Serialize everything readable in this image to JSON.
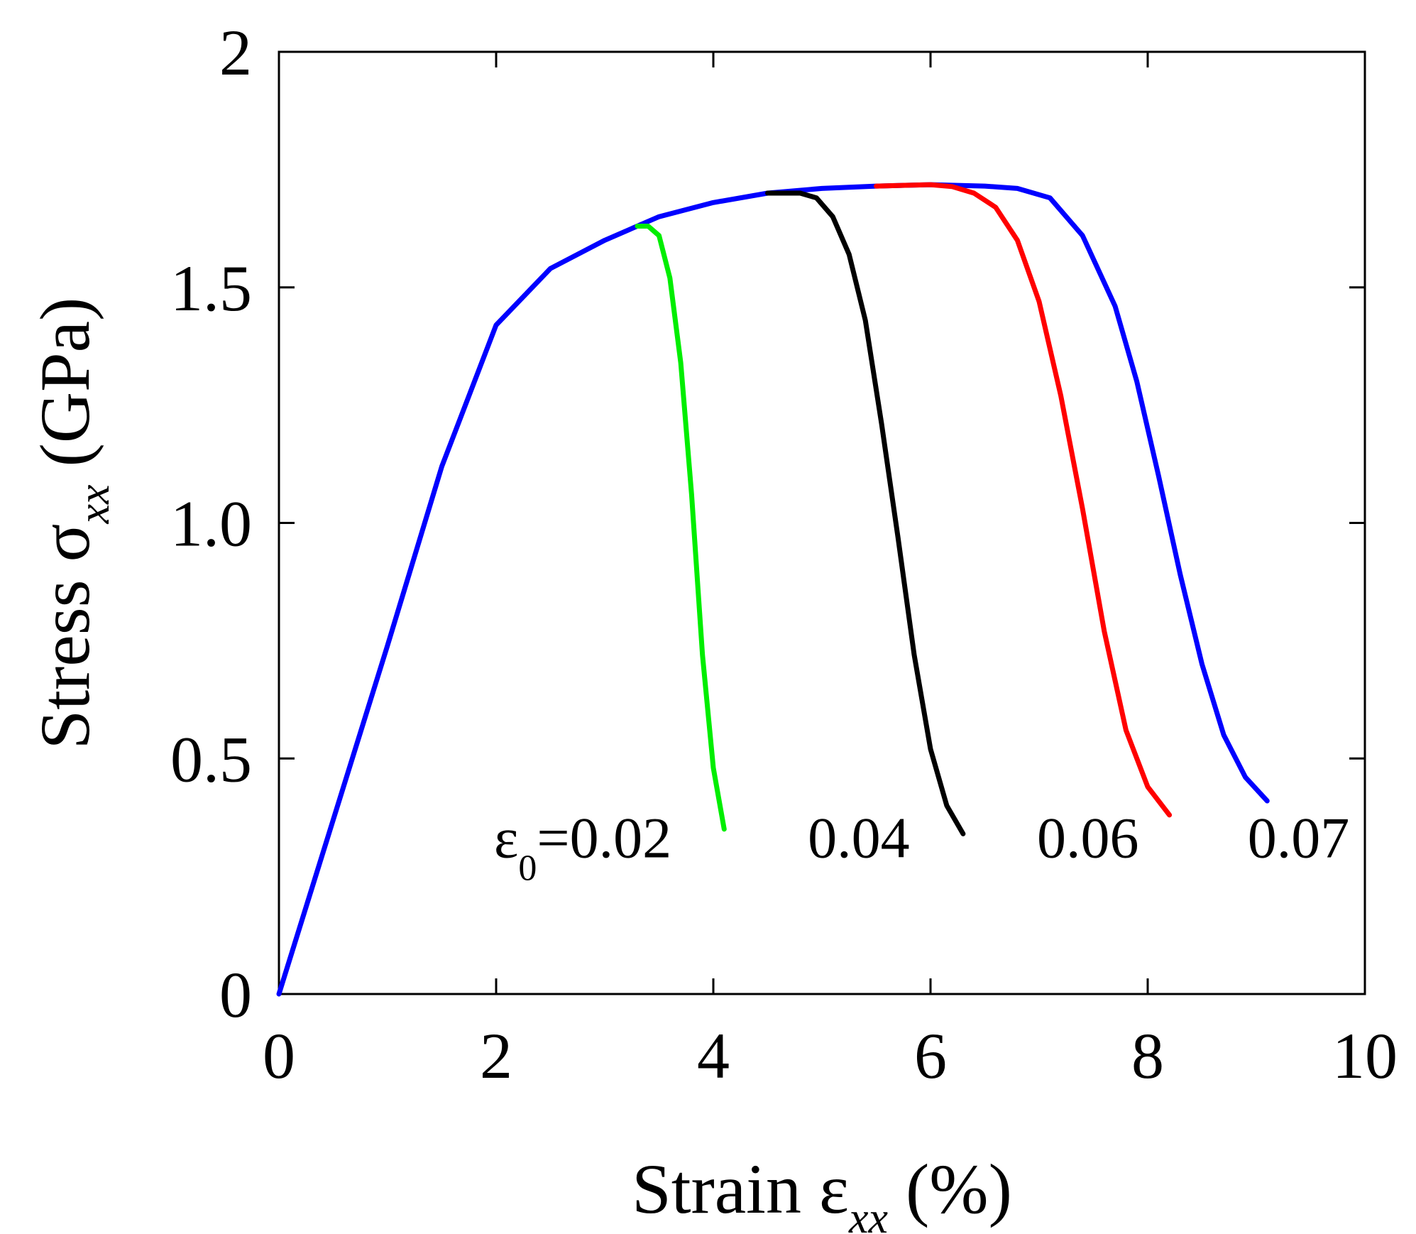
{
  "chart_data": {
    "type": "line",
    "xlabel": "Strain εxx (%)",
    "ylabel": "Stress σxx (GPa)",
    "xlabel_parts": {
      "prefix": "Strain ε",
      "sub": "xx",
      "suffix": " (%)"
    },
    "ylabel_parts": {
      "prefix": "Stress σ",
      "sub": "xx",
      "suffix": "  (GPa)"
    },
    "xlim": [
      0,
      10
    ],
    "ylim": [
      0,
      2
    ],
    "xticks": [
      0,
      2,
      4,
      6,
      8,
      10
    ],
    "xtick_labels": [
      "0",
      "2",
      "4",
      "6",
      "8",
      "10"
    ],
    "yticks": [
      0,
      0.5,
      1.0,
      1.5,
      2
    ],
    "ytick_labels": [
      "0",
      "0.5",
      "1.0",
      "1.5",
      "2"
    ],
    "grid": false,
    "series": [
      {
        "name": "ε0=0.07",
        "label": "0.07",
        "color": "#0000ff",
        "x": [
          0,
          0.5,
          1.0,
          1.5,
          2.0,
          2.5,
          3.0,
          3.5,
          4.0,
          4.5,
          5.0,
          5.5,
          6.0,
          6.5,
          6.8,
          7.1,
          7.4,
          7.7,
          7.9,
          8.1,
          8.3,
          8.5,
          8.7,
          8.9,
          9.1
        ],
        "y": [
          0,
          0.37,
          0.74,
          1.12,
          1.42,
          1.54,
          1.6,
          1.65,
          1.68,
          1.7,
          1.71,
          1.715,
          1.718,
          1.715,
          1.71,
          1.69,
          1.61,
          1.46,
          1.3,
          1.1,
          0.89,
          0.7,
          0.55,
          0.46,
          0.41
        ]
      },
      {
        "name": "ε0=0.06",
        "label": "0.06",
        "color": "#ff0000",
        "x": [
          5.5,
          6.0,
          6.2,
          6.4,
          6.6,
          6.8,
          7.0,
          7.2,
          7.4,
          7.6,
          7.8,
          8.0,
          8.2
        ],
        "y": [
          1.715,
          1.718,
          1.714,
          1.7,
          1.67,
          1.6,
          1.47,
          1.27,
          1.03,
          0.77,
          0.56,
          0.44,
          0.38
        ]
      },
      {
        "name": "ε0=0.04",
        "label": "0.04",
        "color": "#000000",
        "x": [
          4.5,
          4.8,
          4.95,
          5.1,
          5.25,
          5.4,
          5.55,
          5.7,
          5.85,
          6.0,
          6.15,
          6.3
        ],
        "y": [
          1.7,
          1.7,
          1.69,
          1.65,
          1.57,
          1.43,
          1.21,
          0.97,
          0.72,
          0.52,
          0.4,
          0.34
        ]
      },
      {
        "name": "ε0=0.02",
        "label": "ε0=0.02",
        "color": "#00ee00",
        "x": [
          3.3,
          3.4,
          3.5,
          3.6,
          3.7,
          3.8,
          3.9,
          4.0,
          4.1
        ],
        "y": [
          1.63,
          1.63,
          1.61,
          1.52,
          1.34,
          1.06,
          0.72,
          0.48,
          0.35
        ]
      }
    ],
    "annotations": [
      {
        "series": "ε0=0.02",
        "text": "ε0=0.02",
        "prefix": "ε",
        "sub": "0",
        "rest": "=0.02",
        "x": 1.98,
        "y": 0.29
      },
      {
        "series": "ε0=0.04",
        "text": "0.04",
        "x": 4.87,
        "y": 0.29
      },
      {
        "series": "ε0=0.06",
        "text": "0.06",
        "x": 6.98,
        "y": 0.29
      },
      {
        "series": "ε0=0.07",
        "text": "0.07",
        "x": 8.92,
        "y": 0.29
      }
    ]
  }
}
